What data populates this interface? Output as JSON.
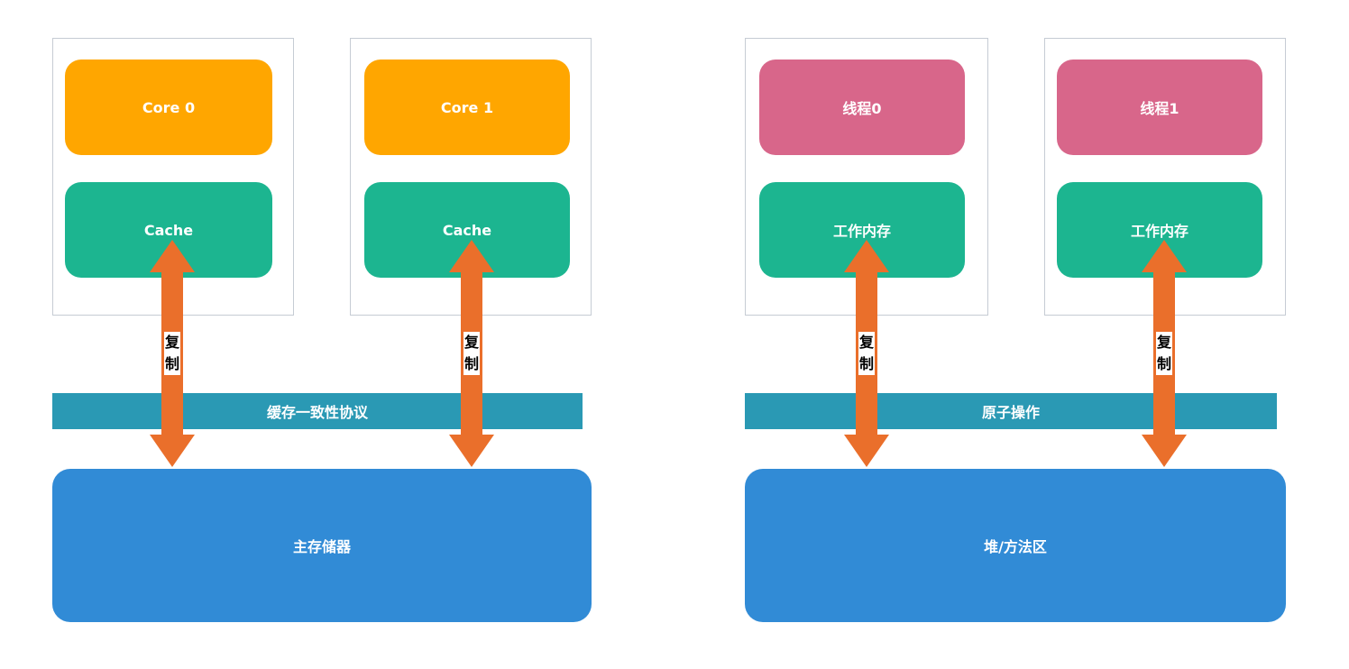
{
  "colors": {
    "core": "#ffa600",
    "thread": "#d8668a",
    "cache": "#1cb590",
    "memory": "#318bd6",
    "bar": "#2a99b4",
    "arrow": "#ea6f2b",
    "frame_border": "#c6ccd4"
  },
  "left": {
    "units": [
      {
        "top_label": "Core 0",
        "bottom_label": "Cache",
        "arrow_label": "复\n制"
      },
      {
        "top_label": "Core 1",
        "bottom_label": "Cache",
        "arrow_label": "复\n制"
      }
    ],
    "bar_label": "缓存一致性协议",
    "memory_label": "主存储器"
  },
  "right": {
    "units": [
      {
        "top_label": "线程0",
        "bottom_label": "工作内存",
        "arrow_label": "复\n制"
      },
      {
        "top_label": "线程1",
        "bottom_label": "工作内存",
        "arrow_label": "复\n制"
      }
    ],
    "bar_label": "原子操作",
    "memory_label": "堆/方法区"
  }
}
